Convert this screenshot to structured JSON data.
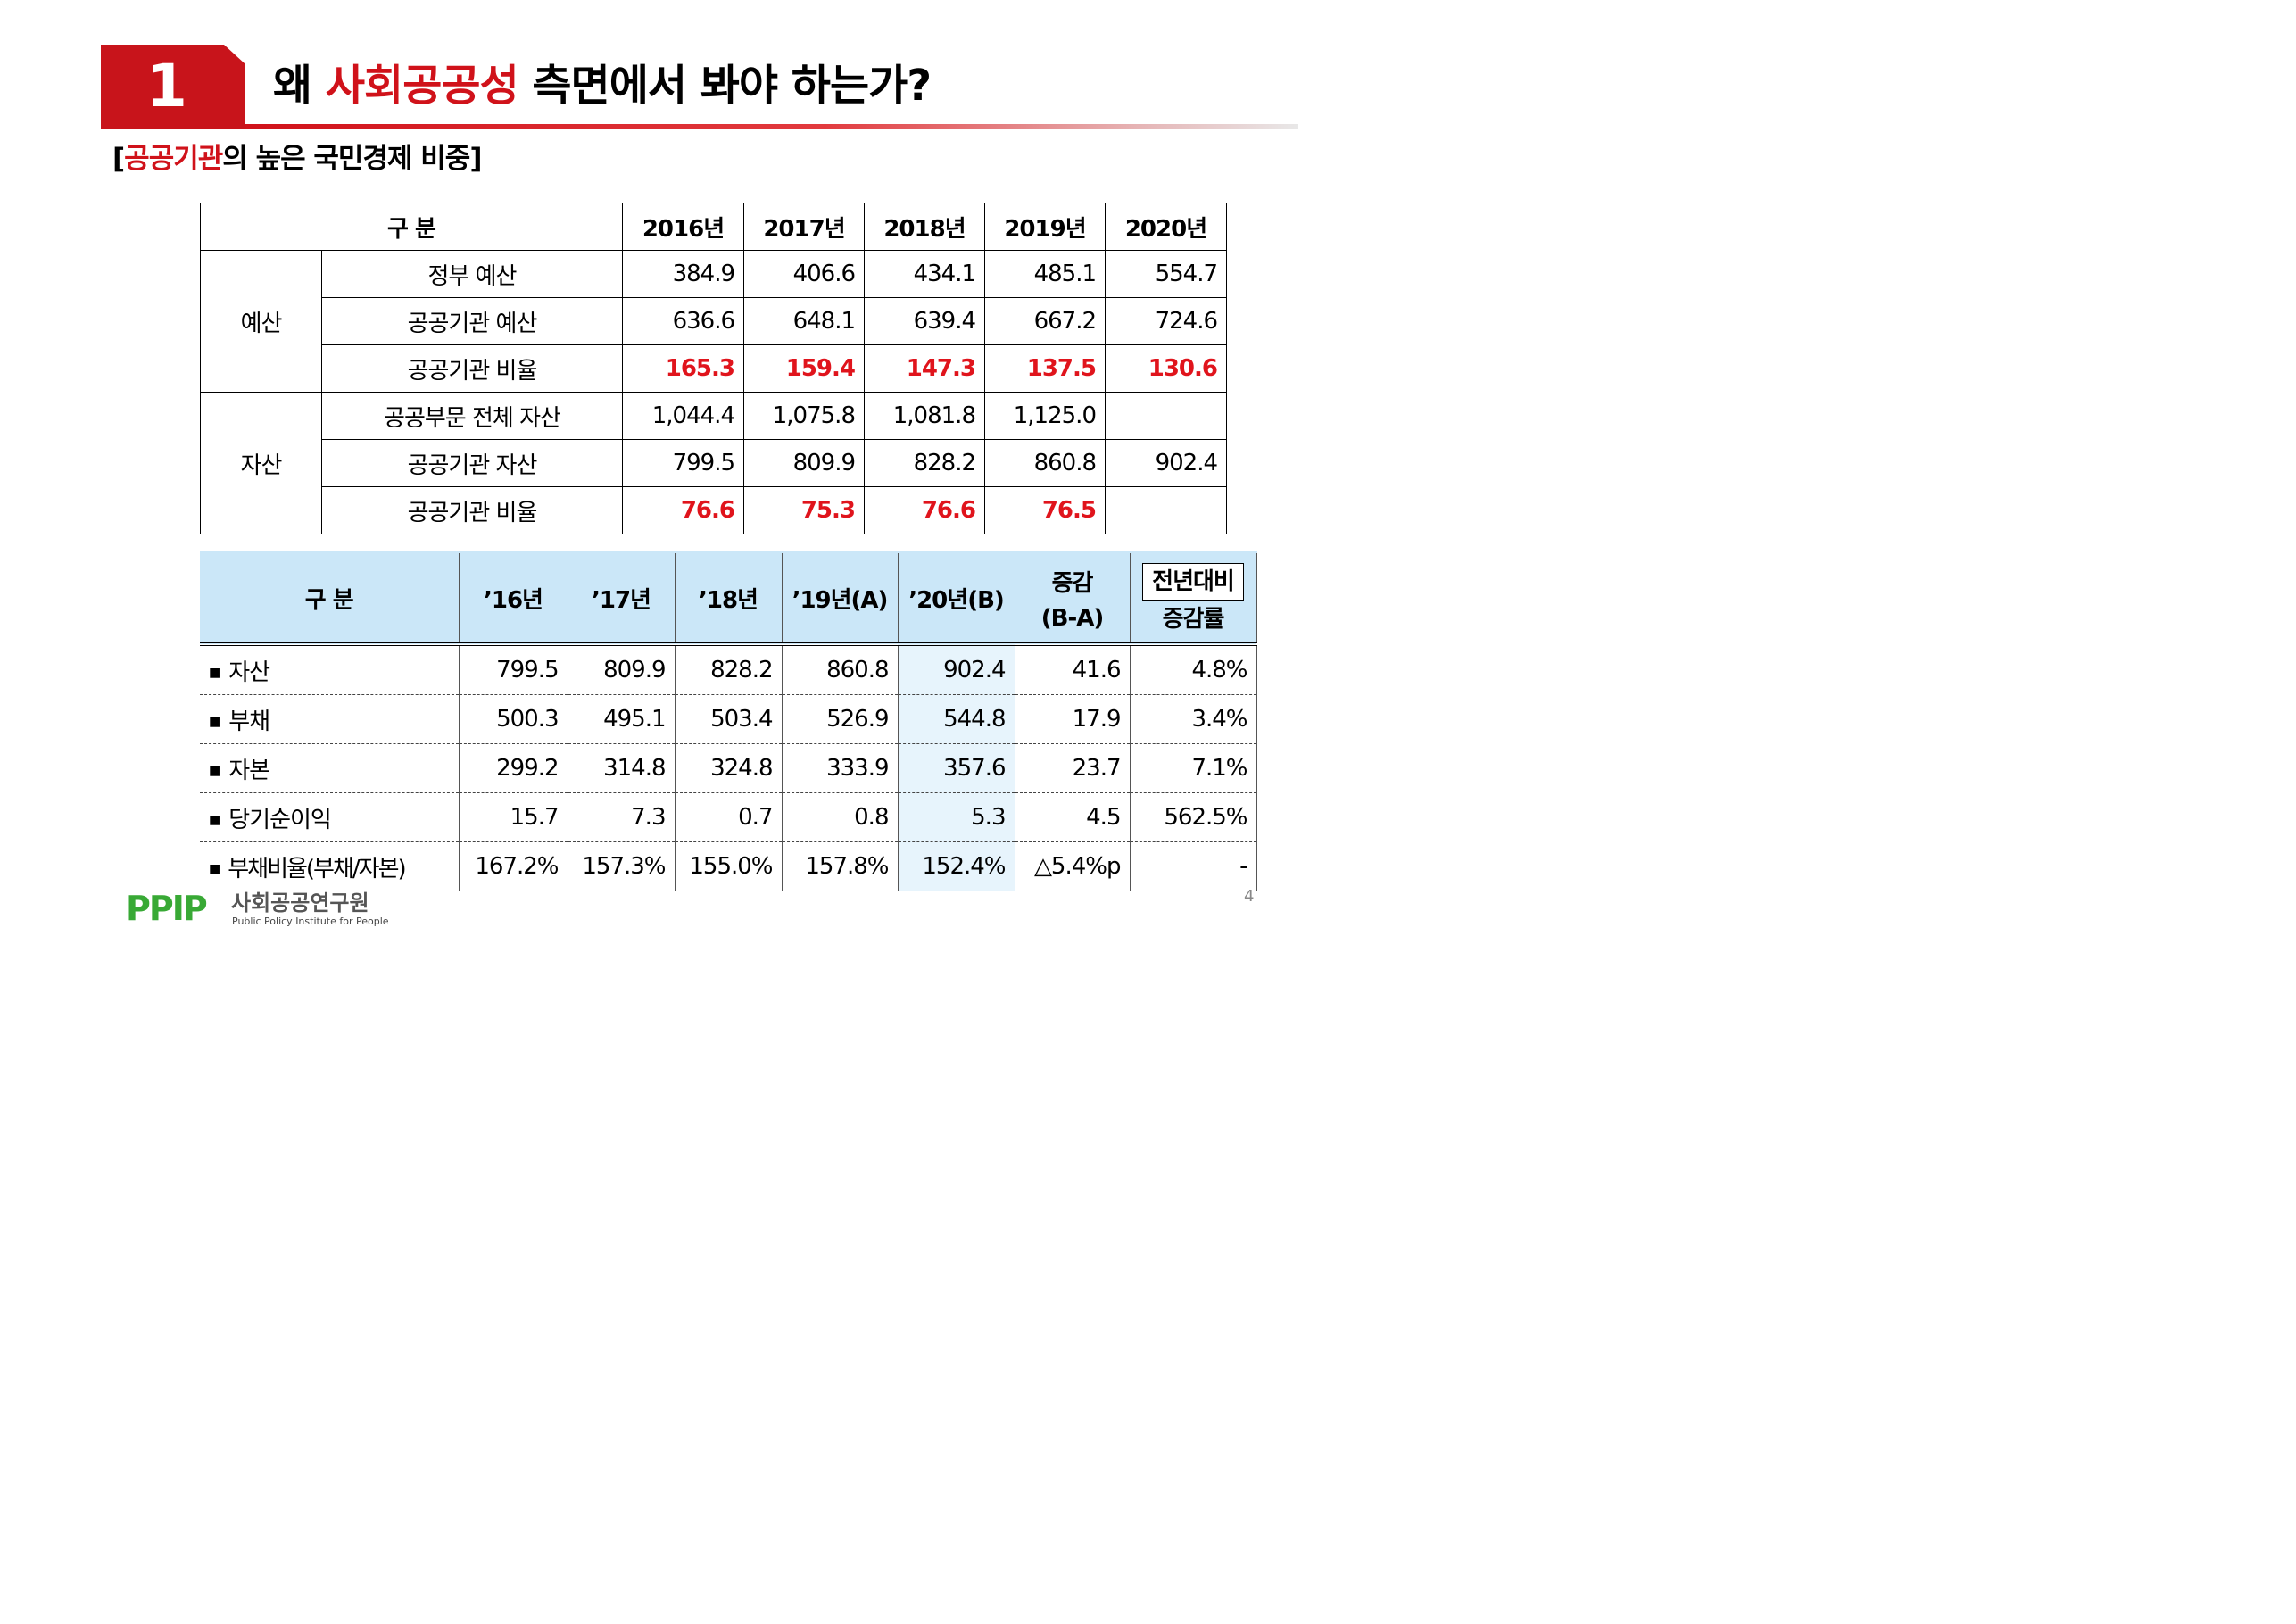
{
  "header": {
    "number": "1",
    "title_prefix": "왜 ",
    "title_highlight": "사회공공성",
    "title_suffix": " 측면에서 봐야 하는가?"
  },
  "subtitle": {
    "open": "[",
    "highlight": "공공기관",
    "rest": "의 높은 국민경제 비중]"
  },
  "table1": {
    "header": [
      "구 분",
      "2016년",
      "2017년",
      "2018년",
      "2019년",
      "2020년"
    ],
    "groups": [
      {
        "label": "예산",
        "rows": [
          {
            "item": "정부 예산",
            "values": [
              "384.9",
              "406.6",
              "434.1",
              "485.1",
              "554.7"
            ],
            "highlight": false
          },
          {
            "item": "공공기관 예산",
            "values": [
              "636.6",
              "648.1",
              "639.4",
              "667.2",
              "724.6"
            ],
            "highlight": false
          },
          {
            "item": "공공기관 비율",
            "values": [
              "165.3",
              "159.4",
              "147.3",
              "137.5",
              "130.6"
            ],
            "highlight": true
          }
        ]
      },
      {
        "label": "자산",
        "rows": [
          {
            "item": "공공부문 전체 자산",
            "values": [
              "1,044.4",
              "1,075.8",
              "1,081.8",
              "1,125.0",
              ""
            ],
            "highlight": false
          },
          {
            "item": "공공기관 자산",
            "values": [
              "799.5",
              "809.9",
              "828.2",
              "860.8",
              "902.4"
            ],
            "highlight": false
          },
          {
            "item": "공공기관 비율",
            "values": [
              "76.6",
              "75.3",
              "76.6",
              "76.5",
              ""
            ],
            "highlight": true
          }
        ]
      }
    ]
  },
  "table2": {
    "header": {
      "category": "구 분",
      "years": [
        "’16년",
        "’17년",
        "’18년",
        "’19년(A)",
        "’20년(B)"
      ],
      "change_line1": "증감",
      "change_line2": "(B-A)",
      "rate_line1": "전년대비",
      "rate_line2": "증감률"
    },
    "rows": [
      {
        "label": "자산",
        "values": [
          "799.5",
          "809.9",
          "828.2",
          "860.8",
          "902.4"
        ],
        "change": "41.6",
        "rate": "4.8%"
      },
      {
        "label": "부채",
        "values": [
          "500.3",
          "495.1",
          "503.4",
          "526.9",
          "544.8"
        ],
        "change": "17.9",
        "rate": "3.4%"
      },
      {
        "label": "자본",
        "values": [
          "299.2",
          "314.8",
          "324.8",
          "333.9",
          "357.6"
        ],
        "change": "23.7",
        "rate": "7.1%"
      },
      {
        "label": "당기순이익",
        "values": [
          "15.7",
          "7.3",
          "0.7",
          "0.8",
          "5.3"
        ],
        "change": "4.5",
        "rate": "562.5%"
      },
      {
        "label": "부채비율(부채/자본)",
        "values": [
          "167.2%",
          "157.3%",
          "155.0%",
          "157.8%",
          "152.4%"
        ],
        "change": "△5.4%p",
        "rate": "-"
      }
    ]
  },
  "footer": {
    "logo_mark": "PPIP",
    "logo_korean": "사회공공연구원",
    "logo_english": "Public Policy Institute for People",
    "page_number": "4"
  },
  "colors": {
    "accent_red": "#d0121a",
    "header_blue": "#cbe7f8",
    "logo_green": "#38a935"
  }
}
